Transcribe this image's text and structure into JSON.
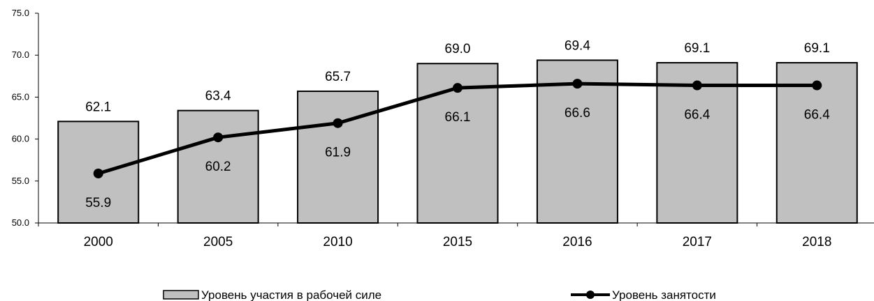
{
  "chart_data": {
    "type": "bar",
    "categories": [
      "2000",
      "2005",
      "2010",
      "2015",
      "2016",
      "2017",
      "2018"
    ],
    "ylim": [
      50.0,
      75.0
    ],
    "yticks": [
      "50.0",
      "55.0",
      "60.0",
      "65.0",
      "70.0",
      "75.0"
    ],
    "grid": false,
    "legend_position": "bottom",
    "series": [
      {
        "name": "Уровень участия в рабочей силе",
        "kind": "bar",
        "values": [
          62.1,
          63.4,
          65.7,
          69.0,
          69.4,
          69.1,
          69.1
        ],
        "labels": [
          "62.1",
          "63.4",
          "65.7",
          "69.0",
          "69.4",
          "69.1",
          "69.1"
        ],
        "color": "#c0c0c0"
      },
      {
        "name": "Уровень занятости",
        "kind": "line",
        "values": [
          55.9,
          60.2,
          61.9,
          66.1,
          66.6,
          66.4,
          66.4
        ],
        "labels": [
          "55.9",
          "60.2",
          "61.9",
          "66.1",
          "66.6",
          "66.4",
          "66.4"
        ],
        "color": "#000000"
      }
    ]
  }
}
